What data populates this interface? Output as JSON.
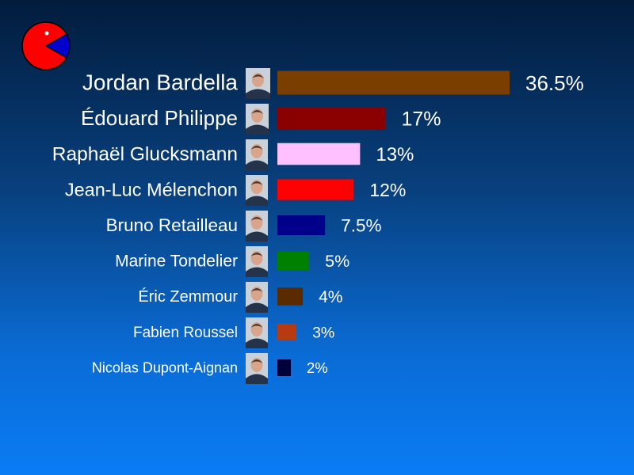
{
  "logo": {
    "icon": "pie-pacman-icon",
    "colors": [
      "#ff0000",
      "#0000cc"
    ]
  },
  "chart_data": {
    "type": "bar",
    "orientation": "horizontal",
    "title": "",
    "categories": [
      "Jordan Bardella",
      "Édouard Philippe",
      "Raphaël Glucksmann",
      "Jean-Luc Mélenchon",
      "Bruno Retailleau",
      "Marine Tondelier",
      "Éric Zemmour",
      "Fabien Roussel",
      "Nicolas Dupont-Aignan"
    ],
    "values": [
      36.5,
      17,
      13,
      12,
      7.5,
      5,
      4,
      3,
      2
    ],
    "value_labels": [
      "36.5%",
      "17%",
      "13%",
      "12%",
      "7.5%",
      "5%",
      "4%",
      "3%",
      "2%"
    ],
    "colors": [
      "#7a3f00",
      "#8b0000",
      "#ffc0ff",
      "#ff0000",
      "#00008b",
      "#008000",
      "#5a2a00",
      "#b83a10",
      "#00003c"
    ],
    "xlim": [
      0,
      36.5
    ],
    "grid": false,
    "legend": "none"
  }
}
